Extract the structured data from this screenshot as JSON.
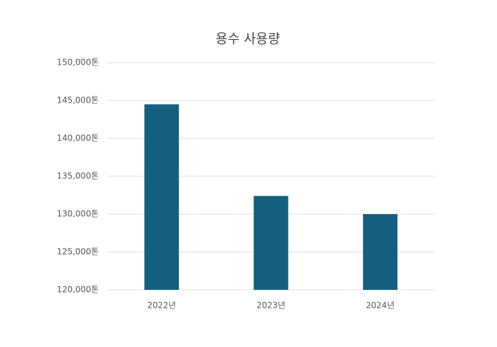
{
  "chart_data": {
    "type": "bar",
    "title": "용수 사용량",
    "categories": [
      "2022년",
      "2023년",
      "2024년"
    ],
    "values": [
      144500,
      132400,
      130000
    ],
    "color": "#16607f",
    "ylim": [
      120000,
      150000
    ],
    "yticks": [
      {
        "value": 120000,
        "label": "120,000톤"
      },
      {
        "value": 125000,
        "label": "125,000톤"
      },
      {
        "value": 130000,
        "label": "130,000톤"
      },
      {
        "value": 135000,
        "label": "135,000톤"
      },
      {
        "value": 140000,
        "label": "140,000톤"
      },
      {
        "value": 145000,
        "label": "145,000톤"
      },
      {
        "value": 150000,
        "label": "150,000톤"
      }
    ],
    "grid": true
  }
}
